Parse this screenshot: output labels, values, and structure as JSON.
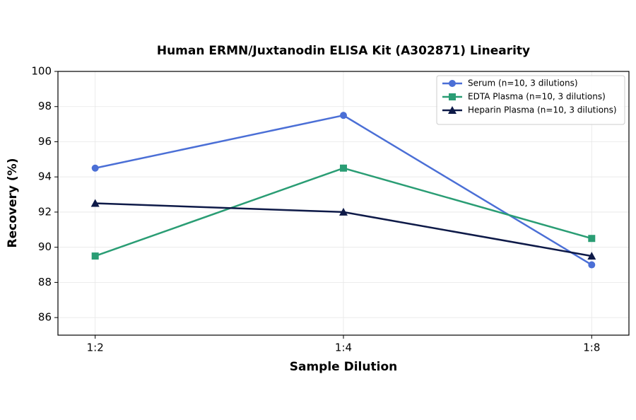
{
  "chart_data": {
    "type": "line",
    "title": "Human ERMN/Juxtanodin ELISA Kit (A302871) Linearity",
    "x_label": "Sample Dilution",
    "y_label": "Recovery (%)",
    "categories": [
      "1:2",
      "1:4",
      "1:8"
    ],
    "series": [
      {
        "name": "Serum (n=10, 3 dilutions)",
        "color": "#4b6fd6",
        "marker": "circle",
        "values": [
          94.5,
          97.5,
          89.0
        ]
      },
      {
        "name": "EDTA Plasma (n=10, 3 dilutions)",
        "color": "#2a9d74",
        "marker": "square",
        "values": [
          89.5,
          94.5,
          90.5
        ]
      },
      {
        "name": "Heparin Plasma (n=10, 3 dilutions)",
        "color": "#0e1a48",
        "marker": "triangle",
        "values": [
          92.5,
          92.0,
          89.5
        ]
      }
    ],
    "ylim": [
      85,
      100
    ],
    "yticks": [
      86,
      88,
      90,
      92,
      94,
      96,
      98,
      100
    ],
    "grid": true,
    "legend": "upper right"
  }
}
